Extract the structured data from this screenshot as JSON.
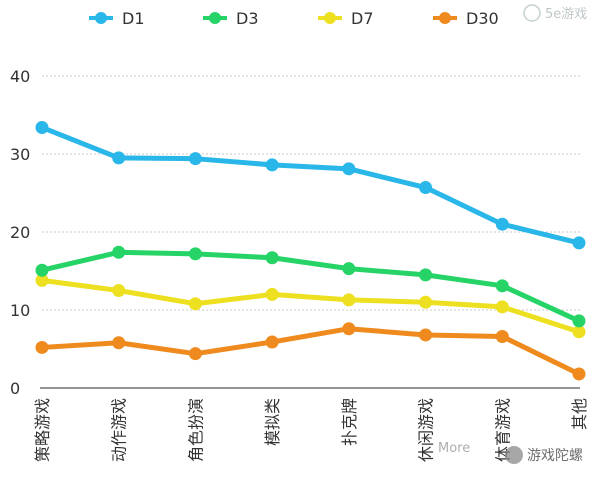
{
  "chart_data": {
    "type": "line",
    "title": "",
    "xlabel": "",
    "ylabel": "",
    "ylim": [
      0,
      40
    ],
    "yticks": [
      0,
      10,
      20,
      30,
      40
    ],
    "grid": true,
    "legend_position": "top",
    "categories": [
      "策略游戏",
      "动作游戏",
      "角色扮演",
      "模拟类",
      "扑克牌",
      "休闲游戏",
      "体育游戏",
      "其他"
    ],
    "series": [
      {
        "name": "D1",
        "color": "#29B6E8",
        "values": [
          33.4,
          29.5,
          29.4,
          28.6,
          28.1,
          25.7,
          21.0,
          18.6
        ]
      },
      {
        "name": "D3",
        "color": "#25D366",
        "values": [
          15.1,
          17.4,
          17.2,
          16.7,
          15.3,
          14.5,
          13.1,
          8.6
        ]
      },
      {
        "name": "D7",
        "color": "#EDE020",
        "values": [
          13.8,
          12.5,
          10.8,
          12.0,
          11.3,
          11.0,
          10.4,
          7.2
        ]
      },
      {
        "name": "D30",
        "color": "#EE8A1E",
        "values": [
          5.2,
          5.8,
          4.4,
          5.9,
          7.6,
          6.8,
          6.6,
          1.8
        ]
      }
    ]
  },
  "watermarks": {
    "top_right_brand": "5e游戏",
    "bottom_right_prefix": "More",
    "bottom_right_name": "游戏陀螺"
  }
}
